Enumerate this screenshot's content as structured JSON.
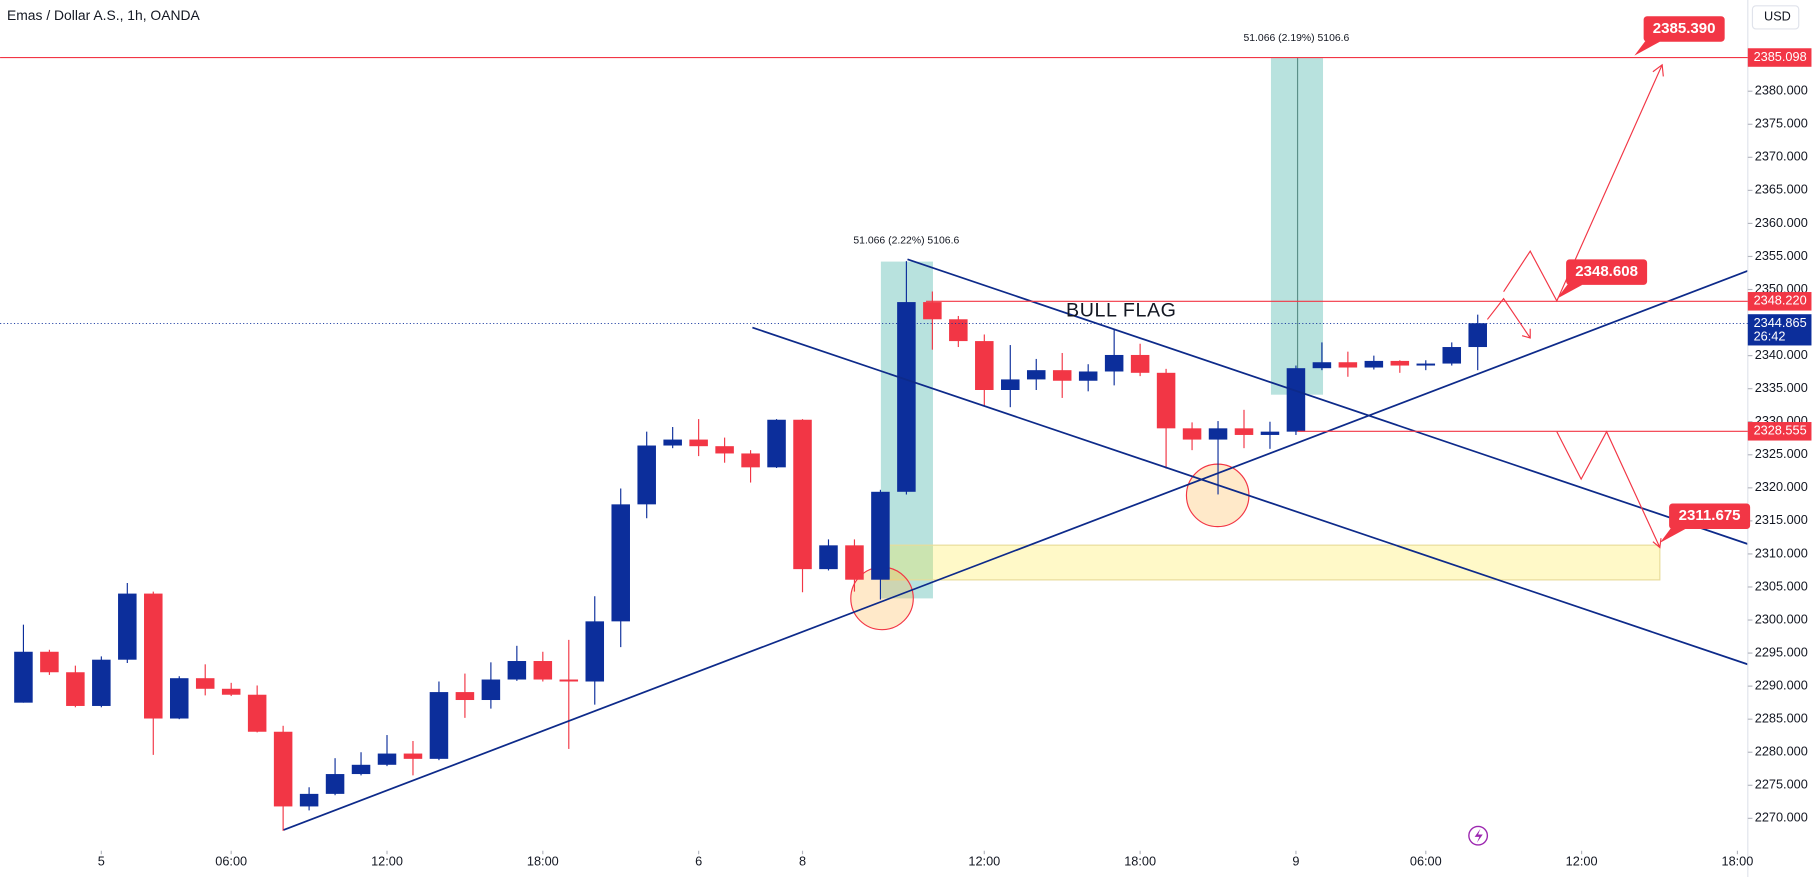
{
  "chart_data": {
    "type": "candlestick",
    "title": "Emas / Dollar A.S., 1h, OANDA",
    "currency": "USD",
    "annotations": {
      "pattern": "BULL FLAG",
      "measure_1": "51.066 (2.22%) 5106.6",
      "measure_2": "51.066 (2.19%) 5106.6"
    },
    "up_color": "#0c2e9b",
    "down_color": "#f23645",
    "grid": false,
    "x": [
      0,
      1,
      2,
      3,
      4,
      5,
      6,
      7,
      8,
      9,
      10,
      11,
      12,
      13,
      14,
      15,
      16,
      17,
      18,
      19,
      20,
      21,
      22,
      23,
      24,
      25,
      26,
      27,
      28,
      29,
      30,
      31,
      32,
      33,
      34,
      35,
      36,
      37,
      38,
      39,
      40,
      41,
      42,
      43,
      44,
      45,
      46,
      47,
      48,
      49,
      50,
      51,
      52,
      53,
      54,
      55,
      56
    ],
    "open": [
      2287.5,
      2295.2,
      2292.1,
      2287.0,
      2294.0,
      2304.0,
      2285.1,
      2291.2,
      2289.6,
      2288.7,
      2283.1,
      2271.8,
      2273.7,
      2276.7,
      2278.1,
      2279.8,
      2279.0,
      2289.1,
      2287.9,
      2291.0,
      2293.8,
      2291.0,
      2290.7,
      2299.8,
      2317.5,
      2326.4,
      2327.3,
      2326.3,
      2325.2,
      2323.1,
      2330.3,
      2307.7,
      2311.3,
      2306.1,
      2319.4,
      2348.1,
      2345.5,
      2342.2,
      2334.8,
      2336.4,
      2337.8,
      2336.2,
      2337.6,
      2340.1,
      2337.4,
      2329.0,
      2327.3,
      2329.0,
      2328.0,
      2328.5,
      2338.1,
      2339.0,
      2338.2,
      2339.2,
      2338.5,
      2338.8,
      2341.3
    ],
    "high": [
      2299.3,
      2295.5,
      2293.1,
      2294.5,
      2305.6,
      2304.3,
      2291.5,
      2293.3,
      2290.5,
      2290.1,
      2284.0,
      2274.7,
      2279.1,
      2280.0,
      2282.6,
      2281.7,
      2290.7,
      2291.9,
      2293.6,
      2296.1,
      2295.2,
      2297.0,
      2303.6,
      2319.9,
      2328.5,
      2329.2,
      2330.4,
      2327.6,
      2325.7,
      2330.4,
      2330.4,
      2312.2,
      2312.2,
      2319.7,
      2354.3,
      2349.7,
      2346.0,
      2343.2,
      2341.6,
      2339.5,
      2340.4,
      2338.7,
      2343.9,
      2341.8,
      2338.0,
      2329.9,
      2330.1,
      2331.8,
      2330.0,
      2338.5,
      2342.0,
      2340.6,
      2340.0,
      2339.3,
      2339.3,
      2342.0,
      2346.2
    ],
    "low": [
      2287.5,
      2291.7,
      2286.8,
      2286.8,
      2293.5,
      2279.6,
      2285.0,
      2288.6,
      2288.5,
      2283.0,
      2268.1,
      2271.2,
      2273.5,
      2276.5,
      2277.9,
      2276.5,
      2278.8,
      2285.2,
      2286.6,
      2290.8,
      2290.7,
      2280.5,
      2287.2,
      2295.9,
      2315.4,
      2326.0,
      2324.8,
      2323.8,
      2320.8,
      2323.0,
      2304.2,
      2307.5,
      2304.3,
      2303.1,
      2319.0,
      2340.9,
      2341.3,
      2332.4,
      2332.2,
      2334.8,
      2333.6,
      2334.6,
      2335.5,
      2336.9,
      2322.9,
      2325.7,
      2319.0,
      2326.0,
      2325.9,
      2328.0,
      2337.8,
      2336.8,
      2337.9,
      2337.4,
      2337.8,
      2338.5,
      2337.8
    ],
    "close": [
      2295.2,
      2292.1,
      2287.0,
      2294.0,
      2304.0,
      2285.1,
      2291.2,
      2289.6,
      2288.7,
      2283.1,
      2271.8,
      2273.7,
      2276.7,
      2278.1,
      2279.8,
      2279.0,
      2289.1,
      2287.9,
      2291.0,
      2293.8,
      2291.0,
      2290.7,
      2299.8,
      2317.5,
      2326.4,
      2327.3,
      2326.3,
      2325.2,
      2323.1,
      2330.3,
      2307.7,
      2311.3,
      2306.1,
      2319.4,
      2348.1,
      2345.5,
      2342.2,
      2334.8,
      2336.4,
      2337.8,
      2336.2,
      2337.6,
      2340.1,
      2337.4,
      2329.0,
      2327.3,
      2329.0,
      2328.0,
      2328.5,
      2338.1,
      2339.0,
      2338.2,
      2339.2,
      2338.5,
      2338.8,
      2341.3,
      2344.9
    ],
    "xlim": [
      -0.9,
      66.4
    ],
    "xticks": [
      {
        "value": 3,
        "label": "5"
      },
      {
        "value": 8,
        "label": "06:00"
      },
      {
        "value": 14,
        "label": "12:00"
      },
      {
        "value": 20,
        "label": "18:00"
      },
      {
        "value": 26,
        "label": "6"
      },
      {
        "value": 30,
        "label": "8"
      },
      {
        "value": 37,
        "label": "12:00"
      },
      {
        "value": 43,
        "label": "18:00"
      },
      {
        "value": 49,
        "label": "9"
      },
      {
        "value": 54,
        "label": "06:00"
      },
      {
        "value": 60,
        "label": "12:00"
      },
      {
        "value": 66,
        "label": "18:00"
      }
    ],
    "ylim": [
      2265.1,
      2393.8
    ],
    "yticks": [
      {
        "value": 2270,
        "label": "2270.000"
      },
      {
        "value": 2275,
        "label": "2275.000"
      },
      {
        "value": 2280,
        "label": "2280.000"
      },
      {
        "value": 2285,
        "label": "2285.000"
      },
      {
        "value": 2290,
        "label": "2290.000"
      },
      {
        "value": 2295,
        "label": "2295.000"
      },
      {
        "value": 2300,
        "label": "2300.000"
      },
      {
        "value": 2305,
        "label": "2305.000"
      },
      {
        "value": 2310,
        "label": "2310.000"
      },
      {
        "value": 2315,
        "label": "2315.000"
      },
      {
        "value": 2320,
        "label": "2320.000"
      },
      {
        "value": 2325,
        "label": "2325.000"
      },
      {
        "value": 2330,
        "label": "2330.000"
      },
      {
        "value": 2335,
        "label": "2335.000"
      },
      {
        "value": 2340,
        "label": "2340.000"
      },
      {
        "value": 2350,
        "label": "2350.000"
      },
      {
        "value": 2355,
        "label": "2355.000"
      },
      {
        "value": 2360,
        "label": "2360.000"
      },
      {
        "value": 2365,
        "label": "2365.000"
      },
      {
        "value": 2370,
        "label": "2370.000"
      },
      {
        "value": 2375,
        "label": "2375.000"
      },
      {
        "value": 2380,
        "label": "2380.000"
      }
    ],
    "price_lines": [
      {
        "value": 2385.098,
        "label": "2385.098"
      },
      {
        "value": 2348.22,
        "label": "2348.220"
      },
      {
        "value": 2328.555,
        "label": "2328.555"
      }
    ],
    "current_price": {
      "value": 2344.865,
      "label": "2344.865",
      "countdown": "26:42"
    },
    "targets": [
      {
        "value": 2385.39,
        "label": "2385.390"
      },
      {
        "value": 2348.608,
        "label": "2348.608"
      },
      {
        "value": 2311.675,
        "label": "2311.675"
      }
    ]
  }
}
